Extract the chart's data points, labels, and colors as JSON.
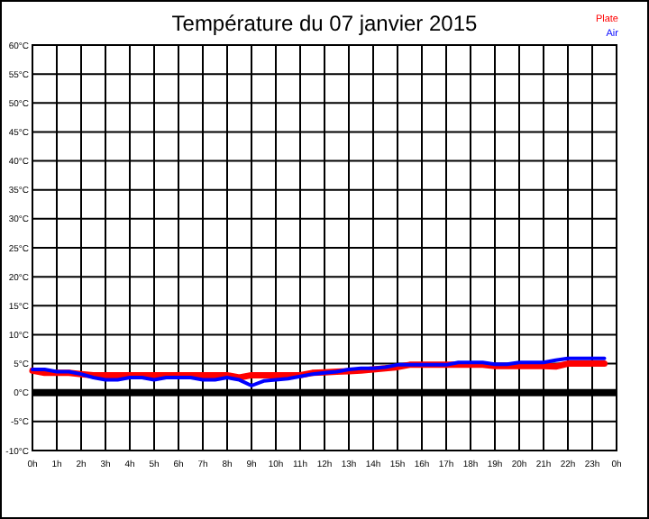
{
  "chart_data": {
    "type": "line",
    "title": "Température du 07 janvier 2015",
    "legend": "top right",
    "grid": true,
    "marker": "none",
    "line_style": "solid",
    "xlim": [
      "2015-01-07T00:00",
      "2015-01-08T00:00"
    ],
    "xticks": [
      {
        "value": "2015-01-07T00:00",
        "label": "0h"
      },
      {
        "value": "2015-01-07T01:00",
        "label": "1h"
      },
      {
        "value": "2015-01-07T02:00",
        "label": "2h"
      },
      {
        "value": "2015-01-07T03:00",
        "label": "3h"
      },
      {
        "value": "2015-01-07T04:00",
        "label": "4h"
      },
      {
        "value": "2015-01-07T05:00",
        "label": "5h"
      },
      {
        "value": "2015-01-07T06:00",
        "label": "6h"
      },
      {
        "value": "2015-01-07T07:00",
        "label": "7h"
      },
      {
        "value": "2015-01-07T08:00",
        "label": "8h"
      },
      {
        "value": "2015-01-07T09:00",
        "label": "9h"
      },
      {
        "value": "2015-01-07T10:00",
        "label": "10h"
      },
      {
        "value": "2015-01-07T11:00",
        "label": "11h"
      },
      {
        "value": "2015-01-07T12:00",
        "label": "12h"
      },
      {
        "value": "2015-01-07T13:00",
        "label": "13h"
      },
      {
        "value": "2015-01-07T14:00",
        "label": "14h"
      },
      {
        "value": "2015-01-07T15:00",
        "label": "15h"
      },
      {
        "value": "2015-01-07T16:00",
        "label": "16h"
      },
      {
        "value": "2015-01-07T17:00",
        "label": "17h"
      },
      {
        "value": "2015-01-07T18:00",
        "label": "18h"
      },
      {
        "value": "2015-01-07T19:00",
        "label": "19h"
      },
      {
        "value": "2015-01-07T20:00",
        "label": "20h"
      },
      {
        "value": "2015-01-07T21:00",
        "label": "21h"
      },
      {
        "value": "2015-01-07T22:00",
        "label": "22h"
      },
      {
        "value": "2015-01-07T23:00",
        "label": "23h"
      },
      {
        "value": "2015-01-08T00:00",
        "label": "0h"
      }
    ],
    "ylim": [
      -10,
      60
    ],
    "yticks": [
      {
        "value": -10,
        "label": "-10°C"
      },
      {
        "value": -5,
        "label": "-5°C"
      },
      {
        "value": 0,
        "label": "0°C"
      },
      {
        "value": 5,
        "label": "5°C"
      },
      {
        "value": 10,
        "label": "10°C"
      },
      {
        "value": 15,
        "label": "15°C"
      },
      {
        "value": 20,
        "label": "20°C"
      },
      {
        "value": 25,
        "label": "25°C"
      },
      {
        "value": 30,
        "label": "30°C"
      },
      {
        "value": 35,
        "label": "35°C"
      },
      {
        "value": 40,
        "label": "40°C"
      },
      {
        "value": 45,
        "label": "45°C"
      },
      {
        "value": 50,
        "label": "50°C"
      },
      {
        "value": 55,
        "label": "55°C"
      },
      {
        "value": 60,
        "label": "60°C"
      }
    ],
    "ref_lines": [
      {
        "axis": "y",
        "value": 0,
        "color": "#000000"
      }
    ],
    "x": [
      "2015-01-07T00:00",
      "2015-01-07T00:30",
      "2015-01-07T01:00",
      "2015-01-07T01:30",
      "2015-01-07T02:00",
      "2015-01-07T02:30",
      "2015-01-07T03:00",
      "2015-01-07T03:30",
      "2015-01-07T04:00",
      "2015-01-07T04:30",
      "2015-01-07T05:00",
      "2015-01-07T05:30",
      "2015-01-07T06:00",
      "2015-01-07T06:30",
      "2015-01-07T07:00",
      "2015-01-07T07:30",
      "2015-01-07T08:00",
      "2015-01-07T08:30",
      "2015-01-07T09:00",
      "2015-01-07T09:30",
      "2015-01-07T10:00",
      "2015-01-07T10:30",
      "2015-01-07T11:00",
      "2015-01-07T11:30",
      "2015-01-07T12:00",
      "2015-01-07T12:30",
      "2015-01-07T13:00",
      "2015-01-07T13:30",
      "2015-01-07T14:00",
      "2015-01-07T14:30",
      "2015-01-07T15:00",
      "2015-01-07T15:30",
      "2015-01-07T16:00",
      "2015-01-07T16:30",
      "2015-01-07T17:00",
      "2015-01-07T17:30",
      "2015-01-07T18:00",
      "2015-01-07T18:30",
      "2015-01-07T19:00",
      "2015-01-07T19:30",
      "2015-01-07T20:00",
      "2015-01-07T20:30",
      "2015-01-07T21:00",
      "2015-01-07T21:30",
      "2015-01-07T22:00",
      "2015-01-07T22:30",
      "2015-01-07T23:00",
      "2015-01-07T23:30"
    ],
    "series": [
      {
        "name": "Plate",
        "color": "#ff0000",
        "values": [
          3.8,
          3.4,
          3.4,
          3.4,
          3.2,
          3.0,
          3.0,
          3.0,
          3.0,
          3.0,
          3.0,
          3.0,
          3.0,
          3.0,
          3.0,
          3.0,
          3.0,
          2.6,
          3.0,
          3.0,
          3.0,
          3.0,
          3.0,
          3.4,
          3.5,
          3.6,
          3.7,
          3.8,
          4.0,
          4.2,
          4.4,
          4.8,
          4.8,
          4.8,
          4.8,
          4.8,
          4.8,
          4.8,
          4.6,
          4.6,
          4.6,
          4.6,
          4.6,
          4.5,
          5.0,
          5.0,
          5.0,
          5.0
        ]
      },
      {
        "name": "Air",
        "color": "#0000ff",
        "values": [
          4.0,
          4.0,
          3.6,
          3.6,
          3.2,
          2.6,
          2.2,
          2.2,
          2.6,
          2.6,
          2.2,
          2.6,
          2.6,
          2.6,
          2.2,
          2.2,
          2.6,
          2.2,
          1.2,
          2.0,
          2.2,
          2.4,
          2.8,
          3.2,
          3.4,
          3.6,
          4.0,
          4.2,
          4.2,
          4.4,
          4.8,
          4.8,
          4.8,
          4.8,
          4.8,
          5.2,
          5.2,
          5.2,
          4.9,
          4.9,
          5.2,
          5.2,
          5.2,
          5.6,
          5.9,
          5.9,
          5.9,
          5.9
        ]
      }
    ]
  }
}
